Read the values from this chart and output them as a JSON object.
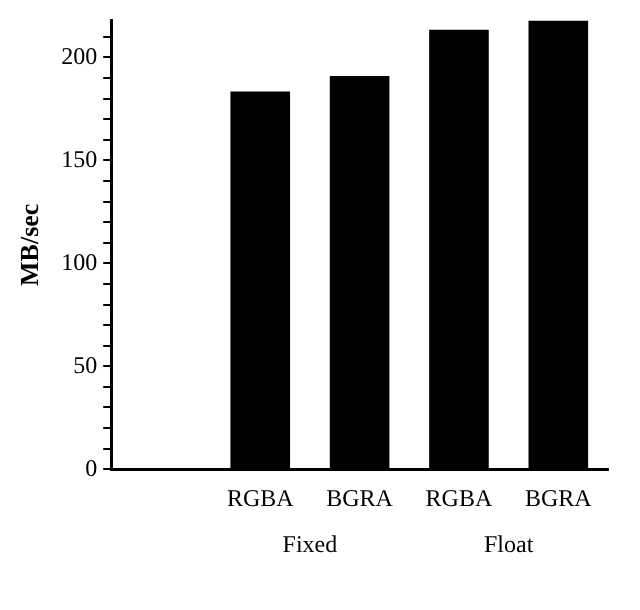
{
  "chart_data": {
    "type": "bar",
    "ylabel": "MB/sec",
    "categories": [
      null,
      "RGBA",
      "BGRA",
      "RGBA",
      "BGRA"
    ],
    "values": [
      null,
      183.5,
      191,
      213.5,
      218
    ],
    "color": "#000000",
    "ylim": [
      0,
      218
    ],
    "yticks": [
      0,
      {
        "value": 10,
        "label": null
      },
      {
        "value": 20,
        "label": null
      },
      {
        "value": 30,
        "label": null
      },
      {
        "value": 40,
        "label": null
      },
      50,
      {
        "value": 60,
        "label": null
      },
      {
        "value": 70,
        "label": null
      },
      {
        "value": 80,
        "label": null
      },
      {
        "value": 90,
        "label": null
      },
      100,
      {
        "value": 110,
        "label": null
      },
      {
        "value": 120,
        "label": null
      },
      {
        "value": 130,
        "label": null
      },
      {
        "value": 140,
        "label": null
      },
      150,
      {
        "value": 160,
        "label": null
      },
      {
        "value": 170,
        "label": null
      },
      {
        "value": 180,
        "label": null
      },
      {
        "value": 190,
        "label": null
      },
      200,
      {
        "value": 210,
        "label": null
      }
    ],
    "annotations": [
      "Fixed",
      "Float"
    ],
    "grid": false,
    "legend": false
  }
}
